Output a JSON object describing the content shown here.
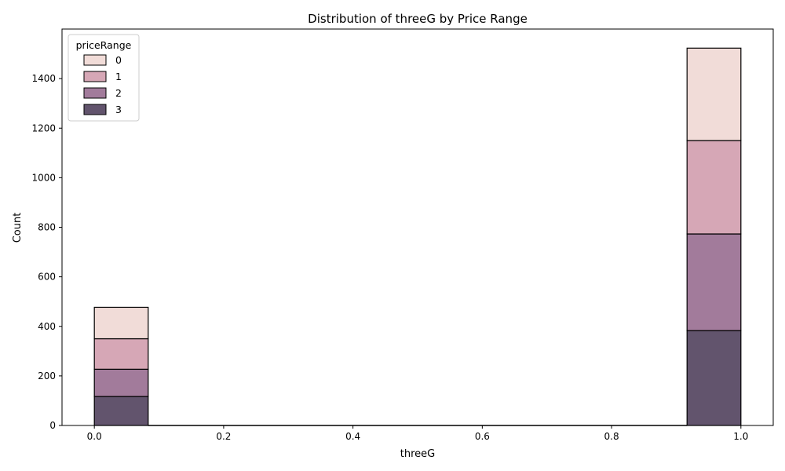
{
  "chart_data": {
    "type": "bar",
    "title": "Distribution of threeG by Price Range",
    "xlabel": "threeG",
    "ylabel": "Count",
    "xlim": [
      -0.05,
      1.05
    ],
    "ylim": [
      0,
      1600
    ],
    "x_ticks": [
      "0.0",
      "0.2",
      "0.4",
      "0.6",
      "0.8",
      "1.0"
    ],
    "y_ticks": [
      "0",
      "200",
      "400",
      "600",
      "800",
      "1000",
      "1200",
      "1400"
    ],
    "bin_width": 0.0833,
    "stacked": true,
    "grid": false,
    "legend": {
      "title": "priceRange",
      "placement": "top-left",
      "entries": [
        "0",
        "1",
        "2",
        "3"
      ]
    },
    "bins": [
      {
        "x_start": 0.0,
        "x_end": 0.0833
      },
      {
        "x_start": 0.9167,
        "x_end": 1.0
      }
    ],
    "series": [
      {
        "name": "3",
        "color": "#62546d",
        "values": [
          117,
          383
        ]
      },
      {
        "name": "2",
        "color": "#a27b9b",
        "values": [
          110,
          390
        ]
      },
      {
        "name": "1",
        "color": "#d6a7b6",
        "values": [
          123,
          377
        ]
      },
      {
        "name": "0",
        "color": "#f1dcd8",
        "values": [
          127,
          373
        ]
      }
    ]
  }
}
